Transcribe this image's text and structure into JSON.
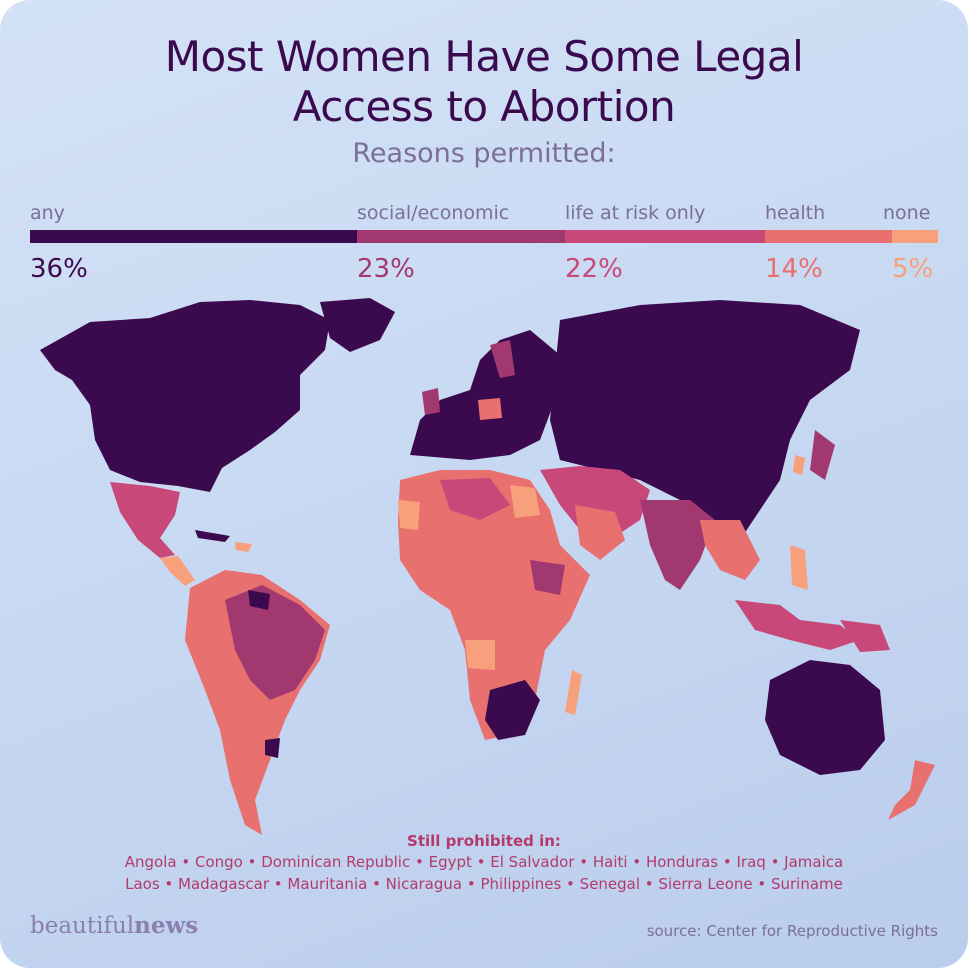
{
  "title_line1": "Most Women Have Some Legal",
  "title_line2": "Access to Abortion",
  "subtitle": "Reasons permitted:",
  "legend": {
    "items": [
      {
        "label": "any",
        "value": 36,
        "display": "36%",
        "color": "#3b0a4e"
      },
      {
        "label": "social/economic",
        "value": 23,
        "display": "23%",
        "color": "#a23870"
      },
      {
        "label": "life at risk only",
        "value": 22,
        "display": "22%",
        "color": "#c9487a"
      },
      {
        "label": "health",
        "value": 14,
        "display": "14%",
        "color": "#e8706e"
      },
      {
        "label": "none",
        "value": 5,
        "display": "5%",
        "color": "#f8a07c"
      }
    ]
  },
  "prohibited": {
    "title": "Still prohibited in:",
    "line1": "Angola • Congo • Dominican Republic • Egypt • El Salvador • Haiti • Honduras • Iraq • Jamaica",
    "line2": "Laos • Madagascar • Mauritania • Nicaragua • Philippines • Senegal • Sierra Leone • Suriname"
  },
  "logo": {
    "part1": "beautiful",
    "part2": "news"
  },
  "source": "source: Center for Reproductive Rights"
}
